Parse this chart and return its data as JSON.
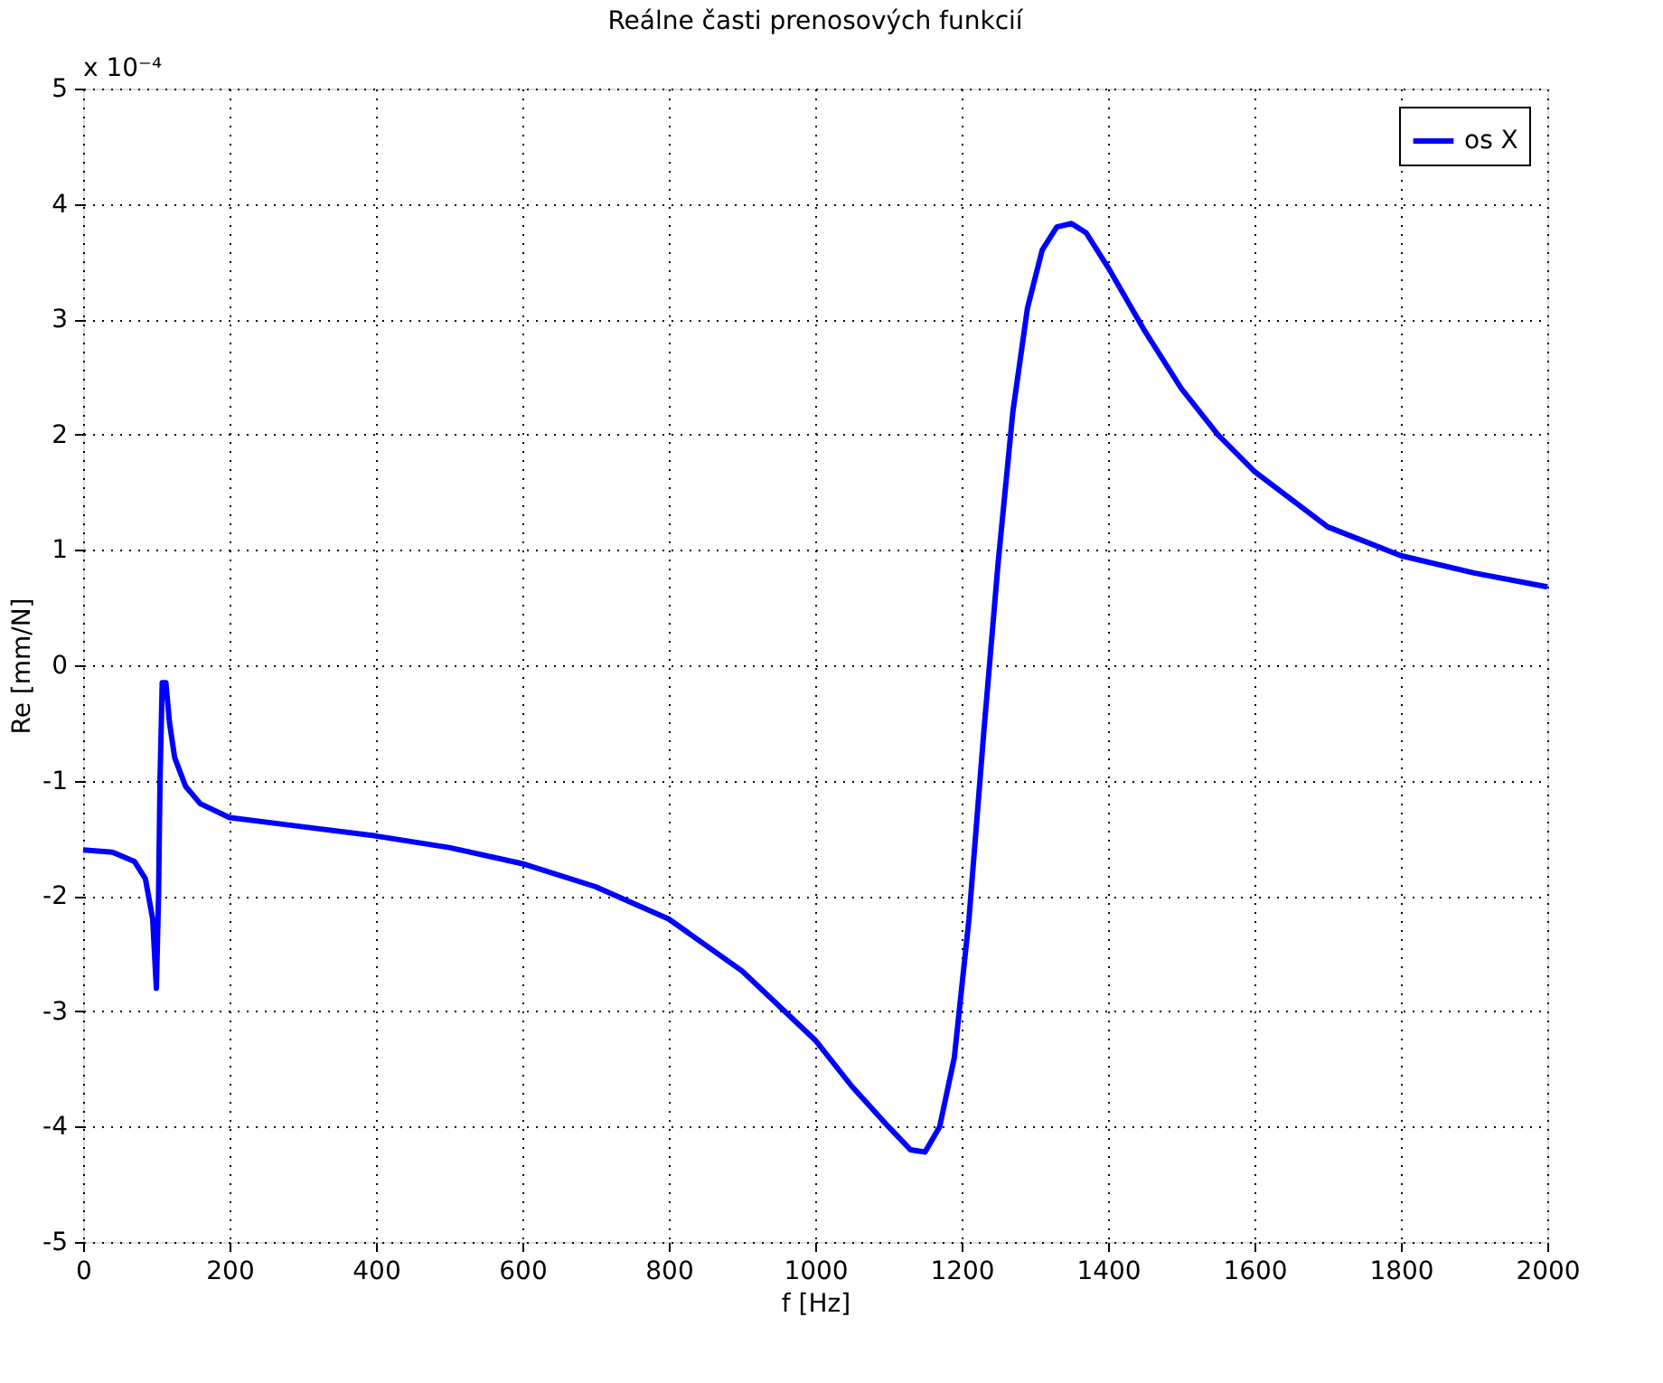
{
  "chart_data": {
    "type": "line",
    "title": "Reálne časti prenosových funkcií",
    "xlabel": "f [Hz]",
    "ylabel": "Re [mm/N]",
    "annotations": [
      "x 10⁻⁴"
    ],
    "xlim": [
      0,
      2000
    ],
    "xticks": [
      0,
      200,
      400,
      600,
      800,
      1000,
      1200,
      1400,
      1600,
      1800,
      2000
    ],
    "ylim": [
      -5,
      5
    ],
    "yticks": [
      -5,
      -4,
      -3,
      -2,
      -1,
      0,
      1,
      2,
      3,
      4,
      5
    ],
    "grid": true,
    "legend": "top right",
    "line_style": "solid",
    "marker": "none",
    "series": [
      {
        "name": "os X",
        "color": "#0000ff",
        "x": [
          0,
          40,
          70,
          85,
          95,
          100,
          103,
          105,
          108,
          113,
          118,
          125,
          140,
          160,
          200,
          300,
          400,
          500,
          600,
          700,
          800,
          900,
          1000,
          1050,
          1100,
          1130,
          1150,
          1170,
          1190,
          1210,
          1230,
          1250,
          1270,
          1290,
          1310,
          1330,
          1350,
          1370,
          1400,
          1450,
          1500,
          1550,
          1600,
          1700,
          1800,
          1900,
          2000
        ],
        "values": [
          -1.6,
          -1.62,
          -1.7,
          -1.85,
          -2.2,
          -2.8,
          -2.0,
          -1.0,
          -0.15,
          -0.15,
          -0.5,
          -0.8,
          -1.05,
          -1.2,
          -1.32,
          -1.4,
          -1.48,
          -1.58,
          -1.72,
          -1.92,
          -2.2,
          -2.65,
          -3.25,
          -3.65,
          -4.0,
          -4.2,
          -4.22,
          -4.0,
          -3.4,
          -2.2,
          -0.6,
          0.9,
          2.2,
          3.1,
          3.6,
          3.8,
          3.83,
          3.75,
          3.45,
          2.9,
          2.4,
          2.0,
          1.68,
          1.2,
          0.95,
          0.8,
          0.68
        ]
      }
    ]
  }
}
